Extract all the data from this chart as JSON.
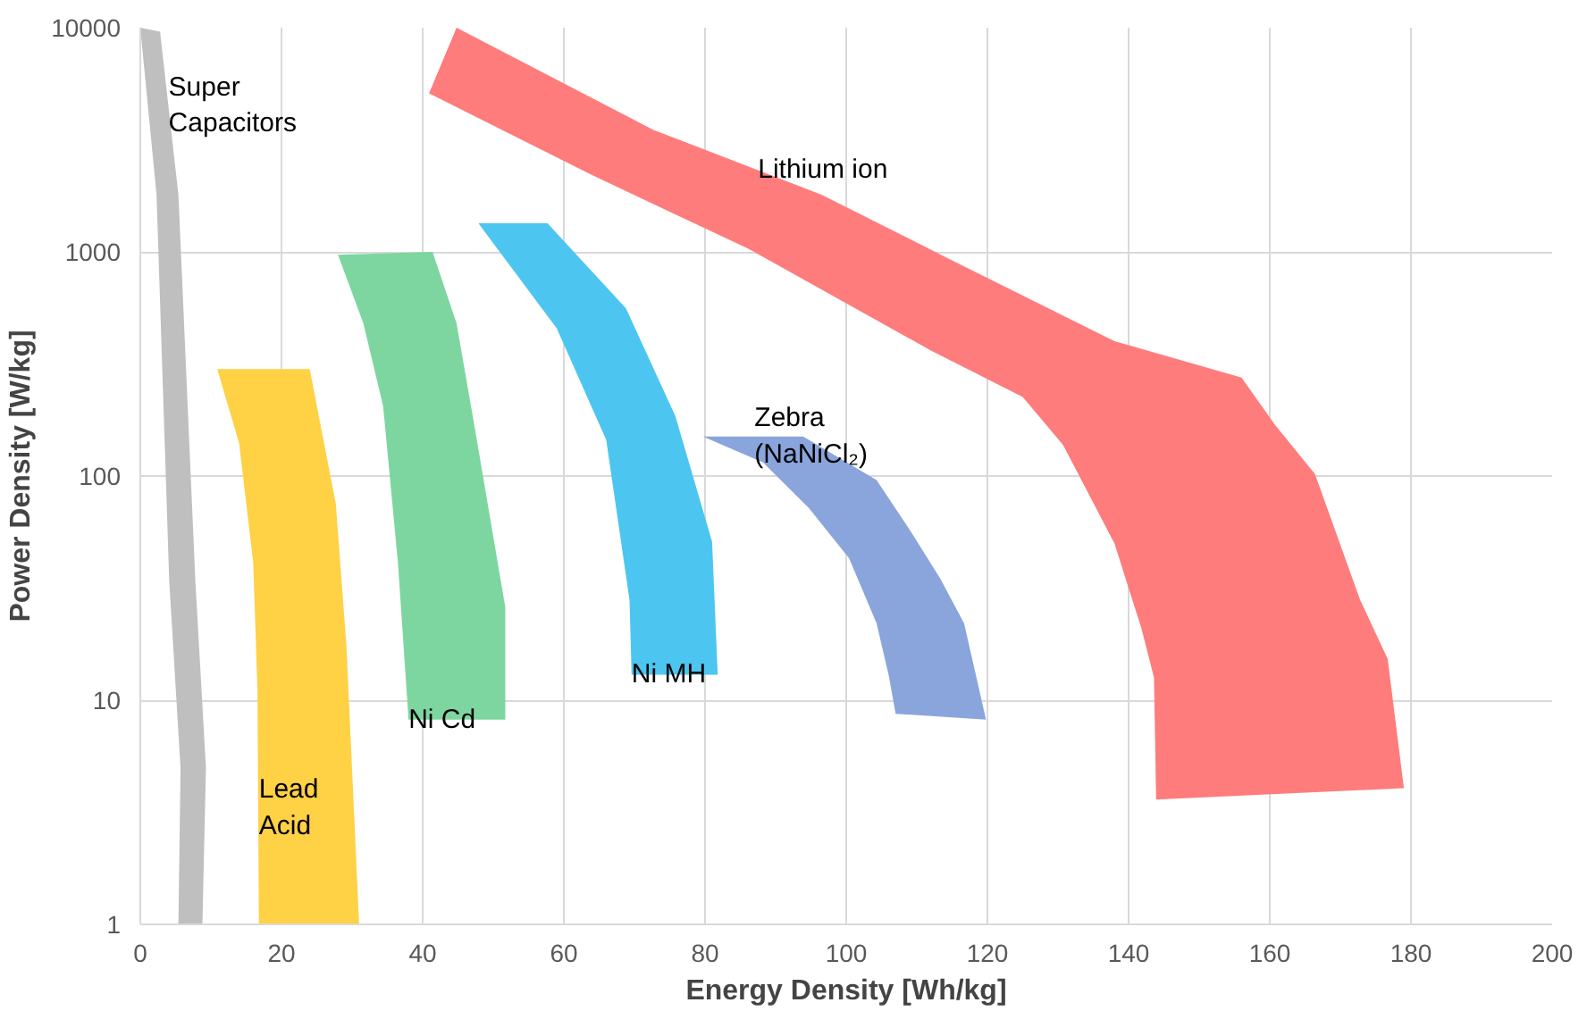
{
  "chart_data": {
    "type": "area",
    "xlabel": "Energy Density [Wh/kg]",
    "ylabel": "Power Density [W/kg]",
    "log": "y",
    "grid": true,
    "xlim": [
      0,
      200
    ],
    "xticks": [
      0,
      20,
      40,
      60,
      80,
      100,
      120,
      140,
      160,
      180,
      200
    ],
    "ylim": [
      1,
      10000
    ],
    "yticks": [
      1,
      10,
      100,
      1000,
      10000
    ],
    "series": [
      {
        "color": "#bfbfbf",
        "x": [
          0,
          2.8,
          5.4,
          7.8,
          9.3,
          8.8,
          5.4,
          5.7,
          4.1,
          2.3
        ],
        "values": [
          10000,
          9600,
          1800,
          34,
          5,
          1,
          1,
          5,
          34,
          1800
        ]
      },
      {
        "color": "#ffd145",
        "x": [
          10.9,
          24,
          27.7,
          29.2,
          31,
          16.8,
          16.6,
          16,
          14
        ],
        "values": [
          300,
          300,
          75,
          17.5,
          1,
          1,
          11,
          41,
          140
        ]
      },
      {
        "color": "#7dd6a0",
        "x": [
          28,
          41.4,
          44.8,
          47.3,
          51.7,
          51.7,
          38,
          36.5,
          34.4,
          31.6
        ],
        "values": [
          970,
          1000,
          480,
          170,
          26,
          8.2,
          8.2,
          41,
          205,
          480
        ]
      },
      {
        "color": "#4cc6f0",
        "x": [
          47.9,
          57.7,
          68.8,
          75.8,
          81,
          81.8,
          69.6,
          69.3,
          66,
          59
        ],
        "values": [
          1340,
          1340,
          560,
          185,
          51,
          13,
          13,
          28,
          145,
          455
        ]
      },
      {
        "color": "#8aa5dc",
        "x": [
          79.7,
          93.9,
          104.3,
          109.4,
          113.3,
          116.7,
          119.8,
          107,
          106,
          104.3,
          100.4,
          94.7,
          88.2
        ],
        "values": [
          150,
          150,
          96,
          55,
          35,
          22,
          8.2,
          8.7,
          13,
          22,
          43,
          72,
          115
        ]
      },
      {
        "color": "#ff7c7c",
        "x": [
          44.8,
          72.7,
          96.5,
          114.6,
          138,
          156,
          160.7,
          166.4,
          172.8,
          176.7,
          179,
          143.9,
          143.6,
          141.8,
          138,
          130.7,
          125,
          112,
          86.2,
          64,
          40.9
        ],
        "values": [
          10000,
          3500,
          1800,
          930,
          400,
          275,
          170,
          102,
          28,
          15.3,
          4.05,
          3.6,
          12.6,
          21,
          50,
          138,
          225,
          363,
          1030,
          2200,
          5100
        ]
      }
    ],
    "annotations": [
      {
        "text": "Super\nCapacitors",
        "x": 4,
        "y": 4500
      },
      {
        "text": "Lithium ion",
        "x": 87.5,
        "y": 2320
      },
      {
        "text": "Zebra\n(NaNiCl₂)",
        "x": 87,
        "y": 150
      },
      {
        "text": "Ni MH",
        "x": 69.6,
        "y": 13
      },
      {
        "text": "Ni Cd",
        "x": 38,
        "y": 8.2
      },
      {
        "text": "Lead\nAcid",
        "x": 16.8,
        "y": 3.3
      }
    ]
  }
}
